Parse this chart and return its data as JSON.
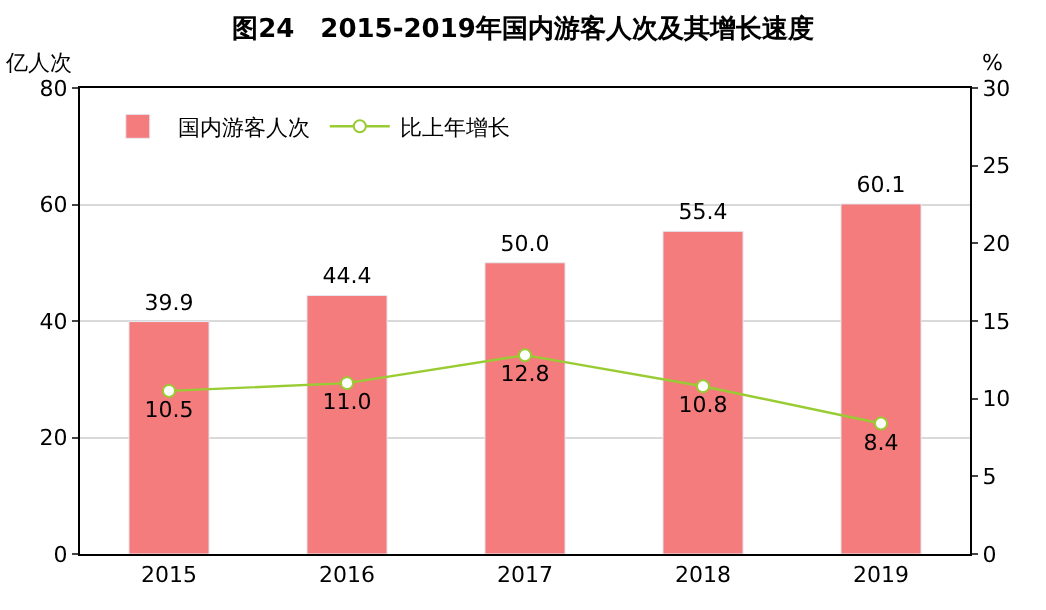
{
  "chart_data": {
    "type": "bar",
    "title": "图24　2015-2019年国内游客人次及其增长速度",
    "ylabel": "亿人次",
    "y2label": "%",
    "categories": [
      "2015",
      "2016",
      "2017",
      "2018",
      "2019"
    ],
    "series": [
      {
        "name": "国内游客人次",
        "color": "#f47c7c",
        "values": [
          39.9,
          44.4,
          50.0,
          55.4,
          60.1
        ],
        "value_labels": [
          "39.9",
          "44.4",
          "50.0",
          "55.4",
          "60.1"
        ]
      },
      {
        "name": "比上年增长",
        "type": "line",
        "axis": "y2",
        "color": "#99cc33",
        "marker": "circle",
        "values": [
          10.5,
          11.0,
          12.8,
          10.8,
          8.4
        ],
        "value_labels": [
          "10.5",
          "11.0",
          "12.8",
          "10.8",
          "8.4"
        ]
      }
    ],
    "ylim": [
      0,
      80
    ],
    "yticks": [
      0,
      20,
      40,
      60,
      80
    ],
    "y2lim": [
      0,
      30
    ],
    "y2ticks": [
      0,
      5,
      10,
      15,
      20,
      25,
      30
    ],
    "grid": "y",
    "legend": "top left"
  }
}
